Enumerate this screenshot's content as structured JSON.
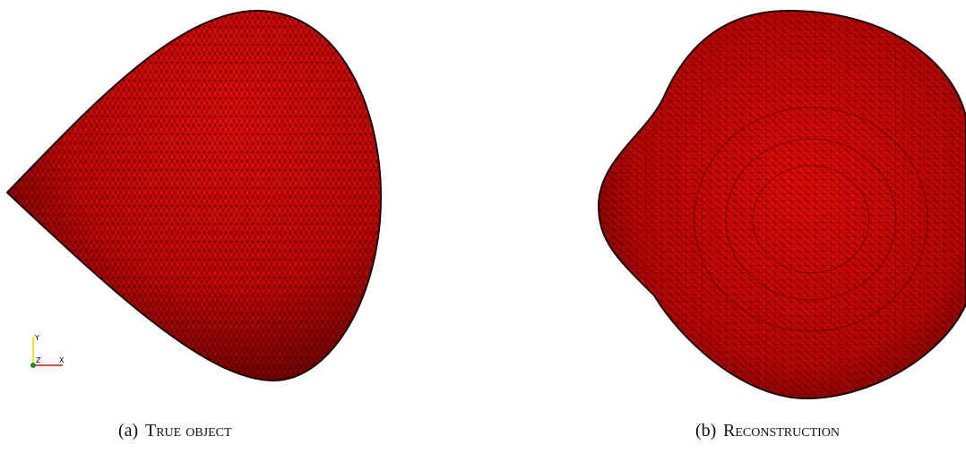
{
  "figure": {
    "panels": [
      {
        "label": "(a)",
        "caption": "True object"
      },
      {
        "label": "(b)",
        "caption": "Reconstruction"
      }
    ],
    "axes_gizmo": {
      "y": "Y",
      "z": "Z",
      "x": "X"
    }
  }
}
